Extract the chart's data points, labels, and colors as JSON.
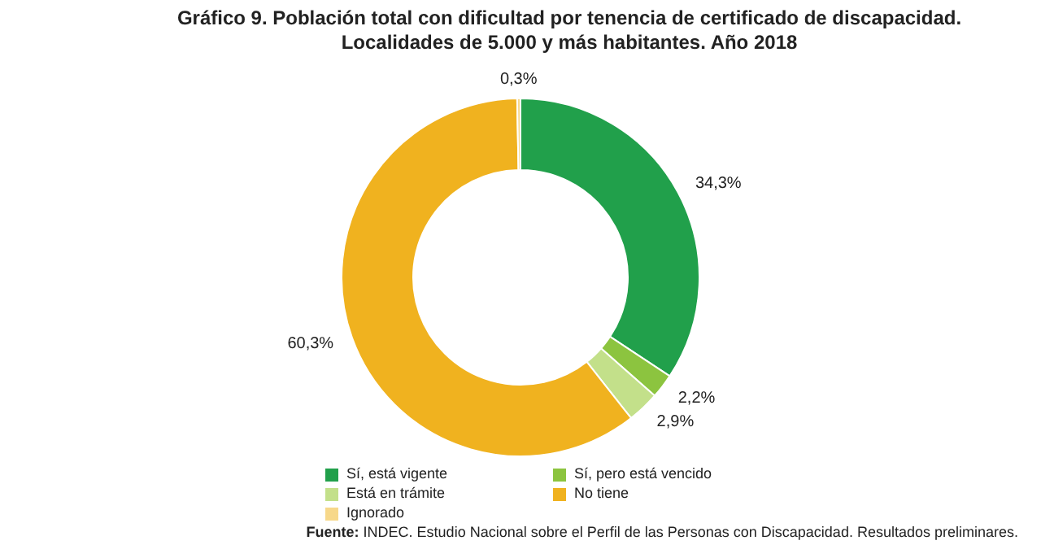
{
  "chart_data": {
    "type": "donut",
    "title": "Gráfico 9. Población total con dificultad por tenencia de certificado de discapacidad.\nLocalidades de 5.000 y más habitantes. Año 2018",
    "categories": [
      "Sí, está vigente",
      "Sí, pero está vencido",
      "Está en trámite",
      "No tiene",
      "Ignorado"
    ],
    "values": [
      34.3,
      2.2,
      2.9,
      60.3,
      0.3
    ],
    "value_labels": [
      "34,3%",
      "2,2%",
      "2,9%",
      "60,3%",
      "0,3%"
    ],
    "colors": [
      "#21a04b",
      "#8cc43f",
      "#c3e08a",
      "#f0b21f",
      "#f7d88a"
    ],
    "legend": "bottom",
    "annotations": [
      "Fuente: INDEC. Estudio Nacional sobre el Perfil de las Personas con Discapacidad. Resultados preliminares."
    ]
  }
}
